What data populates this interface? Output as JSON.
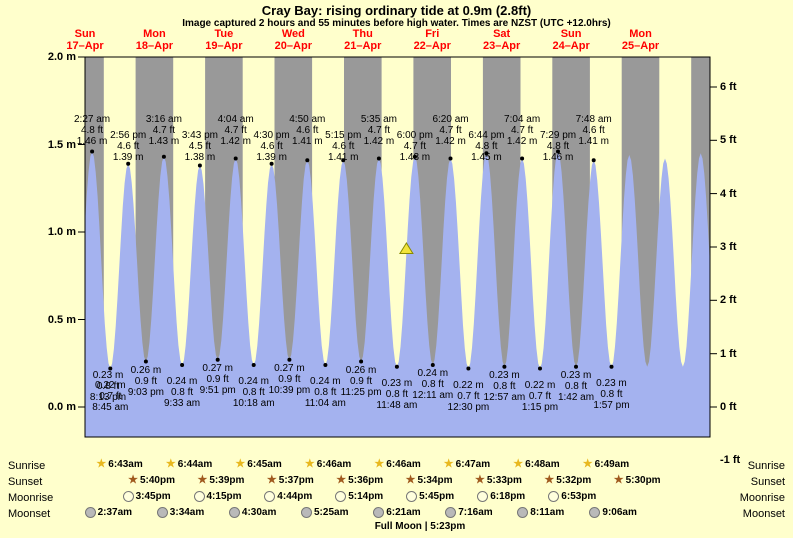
{
  "header": {
    "title": "Cray Bay: rising  ordinary tide at 0.9m (2.8ft)",
    "subtitle": "Image captured 2 hours and 55 minutes before high water. Times are NZST (UTC +12.0hrs)"
  },
  "colors": {
    "background": "#ffffcc",
    "night_band": "#999999",
    "tide_fill": "#a4b2ef",
    "day_label": "#ff0000",
    "marker_fill": "#f2e43c",
    "marker_stroke": "#8a8a00",
    "sunrise_star": "#e8b81f",
    "sunset_star": "#a05a1e",
    "moonrise_fill": "#ffffdd",
    "moonset_fill": "#b9b9b9"
  },
  "chart_data": {
    "type": "area",
    "title": "Cray Bay: rising  ordinary tide at 0.9m (2.8ft)",
    "ylabel_left": "meters",
    "ylabel_right": "feet",
    "ylim": {
      "m": [
        0,
        2
      ],
      "ft": [
        -1,
        6
      ]
    },
    "days": [
      {
        "dow": "Sun",
        "date": "17–Apr"
      },
      {
        "dow": "Mon",
        "date": "18–Apr"
      },
      {
        "dow": "Tue",
        "date": "19–Apr"
      },
      {
        "dow": "Wed",
        "date": "20–Apr"
      },
      {
        "dow": "Thu",
        "date": "21–Apr"
      },
      {
        "dow": "Fri",
        "date": "22–Apr"
      },
      {
        "dow": "Sat",
        "date": "23–Apr"
      },
      {
        "dow": "Sun",
        "date": "24–Apr"
      },
      {
        "dow": "Mon",
        "date": "25–Apr"
      }
    ],
    "axis": {
      "m_ticks": [
        {
          "label": "2.0 m",
          "value": 2.0
        },
        {
          "label": "1.5 m",
          "value": 1.5
        },
        {
          "label": "1.0 m",
          "value": 1.0
        },
        {
          "label": "0.5 m",
          "value": 0.5
        },
        {
          "label": "0.0 m",
          "value": 0.0
        }
      ],
      "ft_ticks": [
        {
          "label": "6 ft",
          "value": 6
        },
        {
          "label": "5 ft",
          "value": 5
        },
        {
          "label": "4 ft",
          "value": 4
        },
        {
          "label": "3 ft",
          "value": 3
        },
        {
          "label": "2 ft",
          "value": 2
        },
        {
          "label": "1 ft",
          "value": 1
        },
        {
          "label": "0 ft",
          "value": 0
        },
        {
          "label": "-1 ft",
          "value": -1
        }
      ]
    },
    "high_tides": [
      {
        "day": 0,
        "time": "2:27 am",
        "ft": "4.8 ft",
        "m": "1.46 m"
      },
      {
        "day": 0,
        "time": "2:56 pm",
        "ft": "4.6 ft",
        "m": "1.39 m"
      },
      {
        "day": 1,
        "time": "3:16 am",
        "ft": "4.7 ft",
        "m": "1.43 m"
      },
      {
        "day": 1,
        "time": "3:43 pm",
        "ft": "4.5 ft",
        "m": "1.38 m"
      },
      {
        "day": 2,
        "time": "4:04 am",
        "ft": "4.7 ft",
        "m": "1.42 m"
      },
      {
        "day": 2,
        "time": "4:30 pm",
        "ft": "4.6 ft",
        "m": "1.39 m"
      },
      {
        "day": 3,
        "time": "4:50 am",
        "ft": "4.6 ft",
        "m": "1.41 m"
      },
      {
        "day": 3,
        "time": "5:15 pm",
        "ft": "4.6 ft",
        "m": "1.41 m"
      },
      {
        "day": 4,
        "time": "5:35 am",
        "ft": "4.7 ft",
        "m": "1.42 m"
      },
      {
        "day": 4,
        "time": "6:00 pm",
        "ft": "4.7 ft",
        "m": "1.43 m"
      },
      {
        "day": 5,
        "time": "6:20 am",
        "ft": "4.7 ft",
        "m": "1.42 m"
      },
      {
        "day": 5,
        "time": "6:44 pm",
        "ft": "4.8 ft",
        "m": "1.45 m"
      },
      {
        "day": 6,
        "time": "7:04 am",
        "ft": "4.7 ft",
        "m": "1.42 m"
      },
      {
        "day": 6,
        "time": "7:29 pm",
        "ft": "4.8 ft",
        "m": "1.46 m"
      },
      {
        "day": 7,
        "time": "7:48 am",
        "ft": "4.6 ft",
        "m": "1.41 m"
      }
    ],
    "low_tides": [
      {
        "day": -1,
        "time": "8:13 pm",
        "ft": "0.8 ft",
        "m": "0.23 m"
      },
      {
        "day": 0,
        "time": "8:45 am",
        "ft": "0.7 ft",
        "m": "0.22 m"
      },
      {
        "day": 0,
        "time": "9:03 pm",
        "ft": "0.9 ft",
        "m": "0.26 m"
      },
      {
        "day": 1,
        "time": "9:33 am",
        "ft": "0.8 ft",
        "m": "0.24 m"
      },
      {
        "day": 1,
        "time": "9:51 pm",
        "ft": "0.9 ft",
        "m": "0.27 m"
      },
      {
        "day": 2,
        "time": "10:18 am",
        "ft": "0.8 ft",
        "m": "0.24 m"
      },
      {
        "day": 2,
        "time": "10:39 pm",
        "ft": "0.9 ft",
        "m": "0.27 m"
      },
      {
        "day": 3,
        "time": "11:04 am",
        "ft": "0.8 ft",
        "m": "0.24 m"
      },
      {
        "day": 3,
        "time": "11:25 pm",
        "ft": "0.9 ft",
        "m": "0.26 m"
      },
      {
        "day": 4,
        "time": "11:48 am",
        "ft": "0.8 ft",
        "m": "0.23 m"
      },
      {
        "day": 5,
        "time": "12:11 am",
        "ft": "0.8 ft",
        "m": "0.24 m"
      },
      {
        "day": 5,
        "time": "12:30 pm",
        "ft": "0.7 ft",
        "m": "0.22 m"
      },
      {
        "day": 6,
        "time": "12:57 am",
        "ft": "0.8 ft",
        "m": "0.23 m"
      },
      {
        "day": 6,
        "time": "1:15 pm",
        "ft": "0.7 ft",
        "m": "0.22 m"
      },
      {
        "day": 7,
        "time": "1:42 am",
        "ft": "0.8 ft",
        "m": "0.23 m"
      },
      {
        "day": 7,
        "time": "1:57 pm",
        "ft": "0.8 ft",
        "m": "0.23 m"
      }
    ],
    "marker": {
      "day": 4,
      "time": "3:05 pm",
      "height_m": 0.9
    }
  },
  "astro": {
    "sunrise": {
      "label": "Sunrise",
      "times": [
        {
          "day": 0,
          "time": "6:43am"
        },
        {
          "day": 1,
          "time": "6:44am"
        },
        {
          "day": 2,
          "time": "6:45am"
        },
        {
          "day": 3,
          "time": "6:46am"
        },
        {
          "day": 4,
          "time": "6:46am"
        },
        {
          "day": 5,
          "time": "6:47am"
        },
        {
          "day": 6,
          "time": "6:48am"
        },
        {
          "day": 7,
          "time": "6:49am"
        }
      ]
    },
    "sunset": {
      "label": "Sunset",
      "times": [
        {
          "day": 0,
          "time": "5:40pm"
        },
        {
          "day": 1,
          "time": "5:39pm"
        },
        {
          "day": 2,
          "time": "5:37pm"
        },
        {
          "day": 3,
          "time": "5:36pm"
        },
        {
          "day": 4,
          "time": "5:34pm"
        },
        {
          "day": 5,
          "time": "5:33pm"
        },
        {
          "day": 6,
          "time": "5:32pm"
        },
        {
          "day": 7,
          "time": "5:30pm"
        }
      ]
    },
    "moonrise": {
      "label": "Moonrise",
      "times": [
        {
          "day": 0,
          "time": "3:45pm"
        },
        {
          "day": 1,
          "time": "4:15pm"
        },
        {
          "day": 2,
          "time": "4:44pm"
        },
        {
          "day": 3,
          "time": "5:14pm"
        },
        {
          "day": 4,
          "time": "5:45pm"
        },
        {
          "day": 5,
          "time": "6:18pm"
        },
        {
          "day": 6,
          "time": "6:53pm"
        }
      ]
    },
    "moonset": {
      "label": "Moonset",
      "times": [
        {
          "day": 0,
          "time": "2:37am"
        },
        {
          "day": 1,
          "time": "3:34am"
        },
        {
          "day": 2,
          "time": "4:30am"
        },
        {
          "day": 3,
          "time": "5:25am"
        },
        {
          "day": 4,
          "time": "6:21am"
        },
        {
          "day": 5,
          "time": "7:16am"
        },
        {
          "day": 6,
          "time": "8:11am"
        },
        {
          "day": 7,
          "time": "9:06am"
        }
      ]
    },
    "moon_phase": "Full Moon | 5:23pm"
  }
}
